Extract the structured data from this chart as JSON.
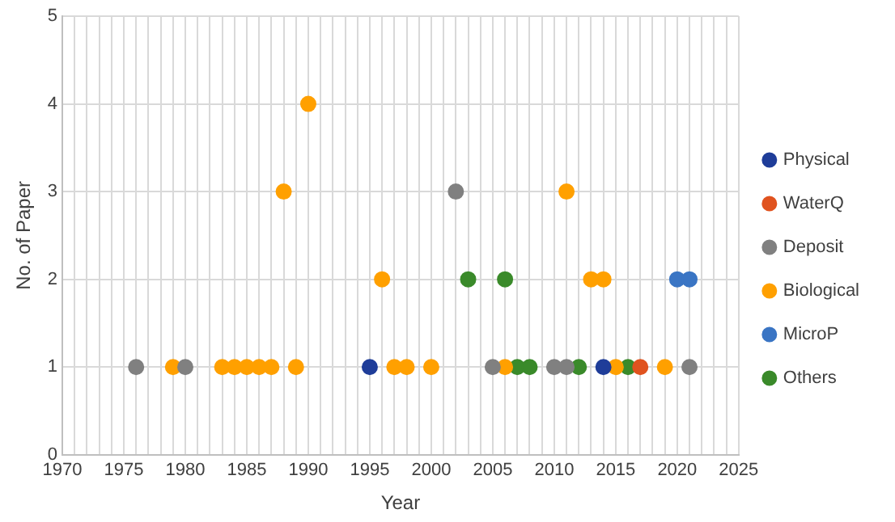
{
  "chart_data": {
    "type": "scatter",
    "xlabel": "Year",
    "ylabel": "No. of Paper",
    "xlim": [
      1970,
      2025
    ],
    "ylim": [
      0,
      5
    ],
    "xticks": [
      1970,
      {
        "value": 1971,
        "label": null
      },
      {
        "value": 1972,
        "label": null
      },
      {
        "value": 1973,
        "label": null
      },
      {
        "value": 1974,
        "label": null
      },
      1975,
      {
        "value": 1976,
        "label": null
      },
      {
        "value": 1977,
        "label": null
      },
      {
        "value": 1978,
        "label": null
      },
      {
        "value": 1979,
        "label": null
      },
      1980,
      {
        "value": 1981,
        "label": null
      },
      {
        "value": 1982,
        "label": null
      },
      {
        "value": 1983,
        "label": null
      },
      {
        "value": 1984,
        "label": null
      },
      1985,
      {
        "value": 1986,
        "label": null
      },
      {
        "value": 1987,
        "label": null
      },
      {
        "value": 1988,
        "label": null
      },
      {
        "value": 1989,
        "label": null
      },
      1990,
      {
        "value": 1991,
        "label": null
      },
      {
        "value": 1992,
        "label": null
      },
      {
        "value": 1993,
        "label": null
      },
      {
        "value": 1994,
        "label": null
      },
      1995,
      {
        "value": 1996,
        "label": null
      },
      {
        "value": 1997,
        "label": null
      },
      {
        "value": 1998,
        "label": null
      },
      {
        "value": 1999,
        "label": null
      },
      2000,
      {
        "value": 2001,
        "label": null
      },
      {
        "value": 2002,
        "label": null
      },
      {
        "value": 2003,
        "label": null
      },
      {
        "value": 2004,
        "label": null
      },
      2005,
      {
        "value": 2006,
        "label": null
      },
      {
        "value": 2007,
        "label": null
      },
      {
        "value": 2008,
        "label": null
      },
      {
        "value": 2009,
        "label": null
      },
      2010,
      {
        "value": 2011,
        "label": null
      },
      {
        "value": 2012,
        "label": null
      },
      {
        "value": 2013,
        "label": null
      },
      {
        "value": 2014,
        "label": null
      },
      2015,
      {
        "value": 2016,
        "label": null
      },
      {
        "value": 2017,
        "label": null
      },
      {
        "value": 2018,
        "label": null
      },
      {
        "value": 2019,
        "label": null
      },
      2020,
      {
        "value": 2021,
        "label": null
      },
      {
        "value": 2022,
        "label": null
      },
      {
        "value": 2023,
        "label": null
      },
      {
        "value": 2024,
        "label": null
      },
      2025
    ],
    "yticks": [
      0,
      1,
      2,
      3,
      4,
      5
    ],
    "grid": true,
    "legend": "right",
    "marker": "circle",
    "series": [
      {
        "name": "Physical",
        "color": "#1f3d99",
        "x": [
          1995,
          2014
        ],
        "values": [
          1,
          1
        ]
      },
      {
        "name": "WaterQ",
        "color": "#e0531f",
        "x": [
          2017
        ],
        "values": [
          1
        ]
      },
      {
        "name": "Deposit",
        "color": "#808080",
        "x": [
          1976,
          1980,
          2002,
          2005,
          2010,
          2011,
          2021
        ],
        "values": [
          1,
          1,
          3,
          1,
          1,
          1,
          1
        ]
      },
      {
        "name": "Biological",
        "color": "#ffa000",
        "x": [
          1979,
          1983,
          1984,
          1985,
          1986,
          1987,
          1988,
          1989,
          1990,
          1996,
          1997,
          1998,
          2000,
          2006,
          2011,
          2013,
          2014,
          2015,
          2019
        ],
        "values": [
          1,
          1,
          1,
          1,
          1,
          1,
          3,
          1,
          4,
          2,
          1,
          1,
          1,
          1,
          3,
          2,
          2,
          1,
          1
        ]
      },
      {
        "name": "MicroP",
        "color": "#3a75c4",
        "x": [
          2020,
          2021
        ],
        "values": [
          2,
          2
        ]
      },
      {
        "name": "Others",
        "color": "#3a8a2a",
        "x": [
          2003,
          2006,
          2007,
          2008,
          2012,
          2016
        ],
        "values": [
          2,
          2,
          1,
          1,
          1,
          1
        ]
      }
    ]
  }
}
